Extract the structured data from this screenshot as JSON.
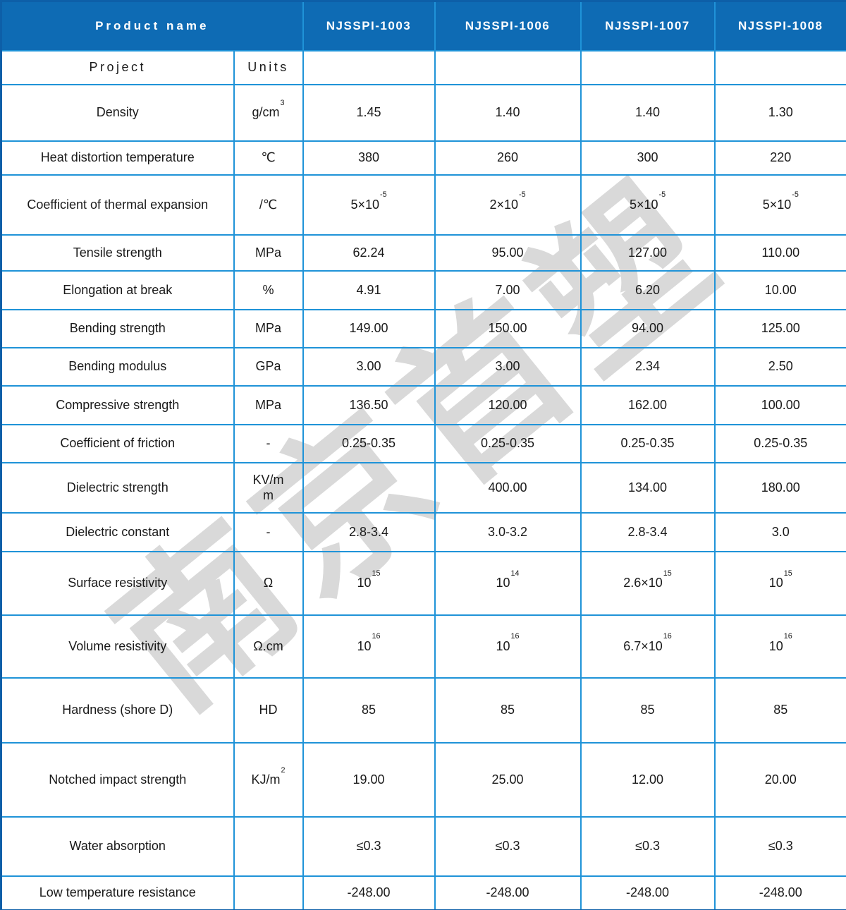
{
  "header": {
    "product_name_label": "Product name",
    "products": [
      "NJSSPI-1003",
      "NJSSPI-1006",
      "NJSSPI-1007",
      "NJSSPI-1008"
    ]
  },
  "subheader": {
    "project_label": "Project",
    "units_label": "Units"
  },
  "watermark_text": "南京首塑",
  "colors": {
    "header_bg": "#0e6bb4",
    "grid_line": "#1f93d8",
    "outer_border": "#0d5fa8",
    "body_text": "#1a1a1a",
    "header_text": "#ffffff",
    "watermark": "#d9d9d9"
  },
  "rows": [
    {
      "project": "Density",
      "unit": "g/cm^3",
      "values": [
        "1.45",
        "1.40",
        "1.40",
        "1.30"
      ]
    },
    {
      "project": "Heat distortion temperature",
      "unit": "℃",
      "values": [
        "380",
        "260",
        "300",
        "220"
      ]
    },
    {
      "project": "Coefficient of thermal expansion",
      "unit": "/℃",
      "values": [
        "5×10^-5",
        "2×10^-5",
        "5×10^-5",
        "5×10^-5"
      ]
    },
    {
      "project": "Tensile strength",
      "unit": "MPa",
      "values": [
        "62.24",
        "95.00",
        "127.00",
        "110.00"
      ]
    },
    {
      "project": "Elongation at break",
      "unit": "%",
      "values": [
        "4.91",
        "7.00",
        "6.20",
        "10.00"
      ]
    },
    {
      "project": "Bending strength",
      "unit": "MPa",
      "values": [
        "149.00",
        "150.00",
        "94.00",
        "125.00"
      ]
    },
    {
      "project": "Bending modulus",
      "unit": "GPa",
      "values": [
        "3.00",
        "3.00",
        "2.34",
        "2.50"
      ]
    },
    {
      "project": "Compressive strength",
      "unit": "MPa",
      "values": [
        "136.50",
        "120.00",
        "162.00",
        "100.00"
      ]
    },
    {
      "project": "Coefficient of friction",
      "unit": "-",
      "values": [
        "0.25-0.35",
        "0.25-0.35",
        "0.25-0.35",
        "0.25-0.35"
      ]
    },
    {
      "project": "Dielectric strength",
      "unit": "KV/m\nm",
      "values": [
        "",
        "400.00",
        "134.00",
        "180.00"
      ]
    },
    {
      "project": "Dielectric constant",
      "unit": "-",
      "values": [
        "2.8-3.4",
        "3.0-3.2",
        "2.8-3.4",
        "3.0"
      ]
    },
    {
      "project": "Surface resistivity",
      "unit": "Ω",
      "values": [
        "10^15",
        "10^14",
        "2.6×10^15",
        "10^15"
      ]
    },
    {
      "project": "Volume resistivity",
      "unit": "Ω.cm",
      "values": [
        "10^16",
        "10^16",
        "6.7×10^16",
        "10^16"
      ]
    },
    {
      "project": "Hardness (shore D)",
      "unit": "HD",
      "values": [
        "85",
        "85",
        "85",
        "85"
      ]
    },
    {
      "project": "Notched impact strength",
      "unit": "KJ/m^2",
      "values": [
        "19.00",
        "25.00",
        "12.00",
        "20.00"
      ]
    },
    {
      "project": "Water absorption",
      "unit": "",
      "values": [
        "≤0.3",
        "≤0.3",
        "≤0.3",
        "≤0.3"
      ]
    },
    {
      "project": "Low temperature resistance",
      "unit": "",
      "values": [
        "-248.00",
        "-248.00",
        "-248.00",
        "-248.00"
      ]
    }
  ]
}
